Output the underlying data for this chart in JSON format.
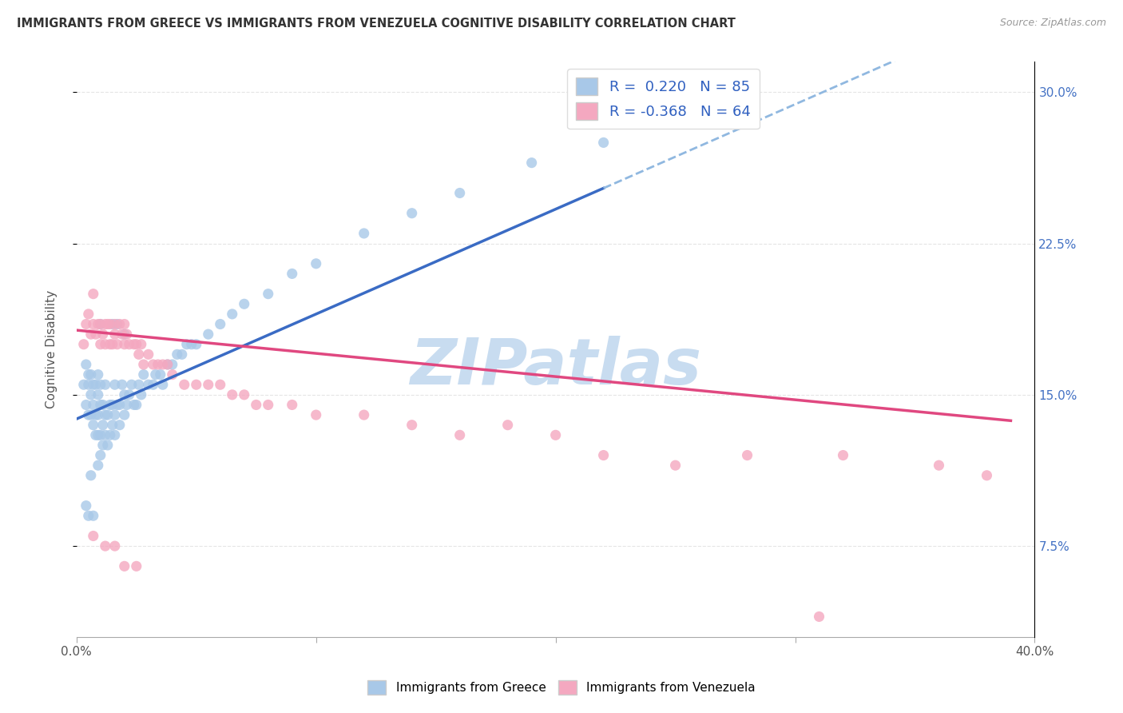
{
  "title": "IMMIGRANTS FROM GREECE VS IMMIGRANTS FROM VENEZUELA COGNITIVE DISABILITY CORRELATION CHART",
  "source": "Source: ZipAtlas.com",
  "ylabel": "Cognitive Disability",
  "yticks_labels": [
    "7.5%",
    "15.0%",
    "22.5%",
    "30.0%"
  ],
  "ytick_vals": [
    0.075,
    0.15,
    0.225,
    0.3
  ],
  "xlim": [
    0.0,
    0.4
  ],
  "ylim": [
    0.03,
    0.315
  ],
  "color_greece": "#A8C8E8",
  "color_venezuela": "#F4A8C0",
  "trendline_greece_solid_color": "#3A6BC4",
  "trendline_greece_dashed_color": "#90B8E0",
  "trendline_venezuela_color": "#E04880",
  "greece_x": [
    0.003,
    0.004,
    0.004,
    0.005,
    0.005,
    0.005,
    0.006,
    0.006,
    0.006,
    0.007,
    0.007,
    0.007,
    0.008,
    0.008,
    0.008,
    0.009,
    0.009,
    0.009,
    0.009,
    0.01,
    0.01,
    0.01,
    0.01,
    0.011,
    0.011,
    0.011,
    0.012,
    0.012,
    0.012,
    0.013,
    0.013,
    0.014,
    0.014,
    0.015,
    0.015,
    0.016,
    0.016,
    0.016,
    0.017,
    0.018,
    0.018,
    0.019,
    0.02,
    0.02,
    0.021,
    0.022,
    0.023,
    0.024,
    0.025,
    0.026,
    0.027,
    0.028,
    0.03,
    0.032,
    0.033,
    0.035,
    0.036,
    0.038,
    0.04,
    0.042,
    0.044,
    0.046,
    0.048,
    0.05,
    0.055,
    0.06,
    0.065,
    0.07,
    0.08,
    0.09,
    0.1,
    0.12,
    0.14,
    0.16,
    0.19,
    0.22,
    0.01,
    0.015,
    0.017,
    0.02,
    0.004,
    0.005,
    0.006,
    0.007,
    0.009
  ],
  "greece_y": [
    0.155,
    0.145,
    0.165,
    0.14,
    0.16,
    0.155,
    0.14,
    0.15,
    0.16,
    0.135,
    0.145,
    0.155,
    0.13,
    0.14,
    0.155,
    0.13,
    0.14,
    0.15,
    0.16,
    0.12,
    0.13,
    0.145,
    0.155,
    0.125,
    0.135,
    0.145,
    0.13,
    0.14,
    0.155,
    0.125,
    0.14,
    0.13,
    0.145,
    0.135,
    0.145,
    0.13,
    0.14,
    0.155,
    0.145,
    0.135,
    0.145,
    0.155,
    0.14,
    0.15,
    0.145,
    0.15,
    0.155,
    0.145,
    0.145,
    0.155,
    0.15,
    0.16,
    0.155,
    0.155,
    0.16,
    0.16,
    0.155,
    0.165,
    0.165,
    0.17,
    0.17,
    0.175,
    0.175,
    0.175,
    0.18,
    0.185,
    0.19,
    0.195,
    0.2,
    0.21,
    0.215,
    0.23,
    0.24,
    0.25,
    0.265,
    0.275,
    0.185,
    0.185,
    0.185,
    0.18,
    0.095,
    0.09,
    0.11,
    0.09,
    0.115
  ],
  "venezuela_x": [
    0.003,
    0.004,
    0.005,
    0.006,
    0.007,
    0.007,
    0.008,
    0.009,
    0.01,
    0.01,
    0.011,
    0.012,
    0.012,
    0.013,
    0.014,
    0.014,
    0.015,
    0.016,
    0.016,
    0.017,
    0.018,
    0.019,
    0.02,
    0.02,
    0.021,
    0.022,
    0.024,
    0.025,
    0.026,
    0.027,
    0.028,
    0.03,
    0.032,
    0.034,
    0.036,
    0.038,
    0.04,
    0.045,
    0.05,
    0.055,
    0.06,
    0.065,
    0.07,
    0.075,
    0.08,
    0.09,
    0.1,
    0.12,
    0.14,
    0.16,
    0.18,
    0.2,
    0.22,
    0.25,
    0.28,
    0.32,
    0.36,
    0.38,
    0.007,
    0.012,
    0.016,
    0.02,
    0.025,
    0.31
  ],
  "venezuela_y": [
    0.175,
    0.185,
    0.19,
    0.18,
    0.2,
    0.185,
    0.18,
    0.185,
    0.175,
    0.185,
    0.18,
    0.175,
    0.185,
    0.185,
    0.175,
    0.185,
    0.175,
    0.18,
    0.185,
    0.175,
    0.185,
    0.18,
    0.185,
    0.175,
    0.18,
    0.175,
    0.175,
    0.175,
    0.17,
    0.175,
    0.165,
    0.17,
    0.165,
    0.165,
    0.165,
    0.165,
    0.16,
    0.155,
    0.155,
    0.155,
    0.155,
    0.15,
    0.15,
    0.145,
    0.145,
    0.145,
    0.14,
    0.14,
    0.135,
    0.13,
    0.135,
    0.13,
    0.12,
    0.115,
    0.12,
    0.12,
    0.115,
    0.11,
    0.08,
    0.075,
    0.075,
    0.065,
    0.065,
    0.04
  ],
  "greece_trendline_intercept": 0.138,
  "greece_trendline_slope": 0.52,
  "venezuela_trendline_intercept": 0.182,
  "venezuela_trendline_slope": -0.115,
  "watermark_text": "ZIPatlas",
  "watermark_color": "#C8DCF0",
  "background_color": "#FFFFFF"
}
